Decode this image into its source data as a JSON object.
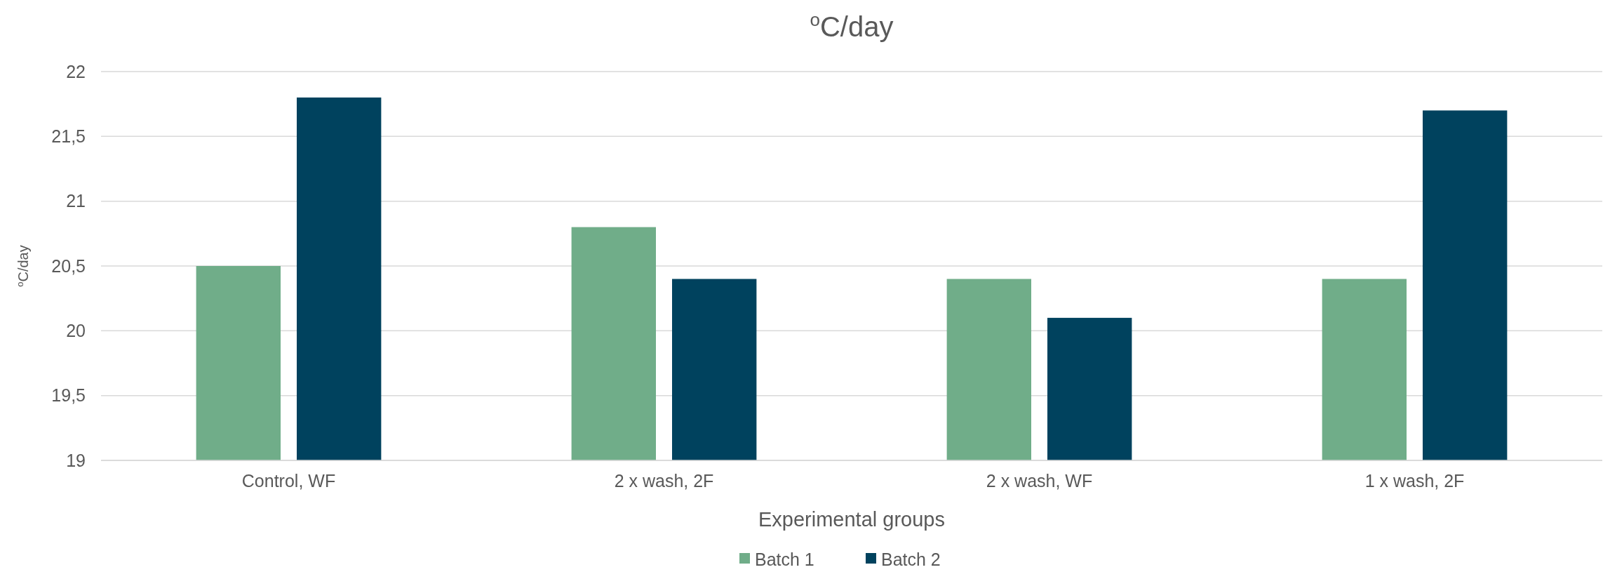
{
  "chart_data": {
    "type": "bar",
    "title": "$^{o}$C/day",
    "xlabel": "Experimental groups",
    "ylabel": "$^{o}$C/day",
    "categories": [
      "Control, WF",
      "2 x wash, 2F",
      "2 x wash, WF",
      "1 x wash, 2F"
    ],
    "series": [
      {
        "name": "Batch 1",
        "color": "#70ad89",
        "values": [
          20.5,
          20.8,
          20.4,
          20.4
        ]
      },
      {
        "name": "Batch 2",
        "color": "#00425e",
        "values": [
          21.8,
          20.4,
          20.1,
          21.7
        ]
      }
    ],
    "ylim": [
      19,
      22
    ],
    "yticks": [
      19,
      {
        "value": 19.5,
        "label": "19,5"
      },
      20,
      {
        "value": 20.5,
        "label": "20,5"
      },
      21,
      {
        "value": 21.5,
        "label": "21,5"
      },
      22
    ],
    "grid": "y",
    "legend": "bottom"
  }
}
